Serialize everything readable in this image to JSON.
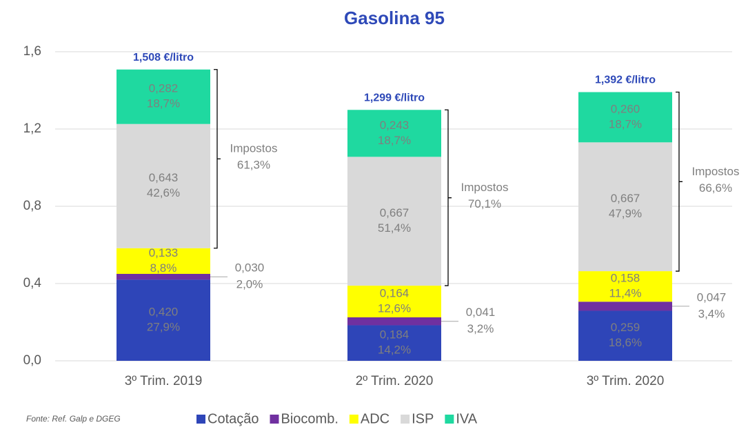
{
  "chart_data": {
    "type": "stacked_bar",
    "title": "Gasolina 95",
    "categories": [
      "3º Trim. 2019",
      "2º Trim. 2020",
      "3º Trim. 2020"
    ],
    "series": [
      {
        "name": "Cotação",
        "color": "#2e45b8",
        "values": [
          0.42,
          0.184,
          0.259
        ],
        "value_labels": [
          "0,420",
          "0,184",
          "0,259"
        ],
        "share_labels": [
          "27,9%",
          "14,2%",
          "18,6%"
        ]
      },
      {
        "name": "Biocomb.",
        "color": "#7030a0",
        "values": [
          0.03,
          0.041,
          0.047
        ],
        "value_labels": [
          "0,030",
          "0,041",
          "0,047"
        ],
        "share_labels": [
          "2,0%",
          "3,2%",
          "3,4%"
        ]
      },
      {
        "name": "ADC",
        "color": "#ffff00",
        "values": [
          0.133,
          0.164,
          0.158
        ],
        "value_labels": [
          "0,133",
          "0,164",
          "0,158"
        ],
        "share_labels": [
          "8,8%",
          "12,6%",
          "11,4%"
        ]
      },
      {
        "name": "ISP",
        "color": "#d9d9d9",
        "values": [
          0.643,
          0.667,
          0.667
        ],
        "value_labels": [
          "0,643",
          "0,667",
          "0,667"
        ],
        "share_labels": [
          "42,6%",
          "51,4%",
          "47,9%"
        ]
      },
      {
        "name": "IVA",
        "color": "#1fd9a0",
        "values": [
          0.282,
          0.243,
          0.26
        ],
        "value_labels": [
          "0,282",
          "0,243",
          "0,260"
        ],
        "share_labels": [
          "18,7%",
          "18,7%",
          "18,7%"
        ]
      }
    ],
    "total_labels": [
      "1,508 €/litro",
      "1,299 €/litro",
      "1,392 €/litro"
    ],
    "taxes_label": "Impostos",
    "taxes_shares": [
      "61,3%",
      "70,1%",
      "66,6%"
    ],
    "ylim": [
      0,
      1.6
    ],
    "yticks": [
      {
        "value": 0,
        "label": "0,0"
      },
      {
        "value": 0.4,
        "label": "0,4"
      },
      {
        "value": 0.8,
        "label": "0,8"
      },
      {
        "value": 1.2,
        "label": "1,2"
      },
      {
        "value": 1.6,
        "label": "1,6"
      }
    ],
    "grid": true,
    "legend": "bottom",
    "source": "Fonte: Ref. Galp e DGEG"
  }
}
